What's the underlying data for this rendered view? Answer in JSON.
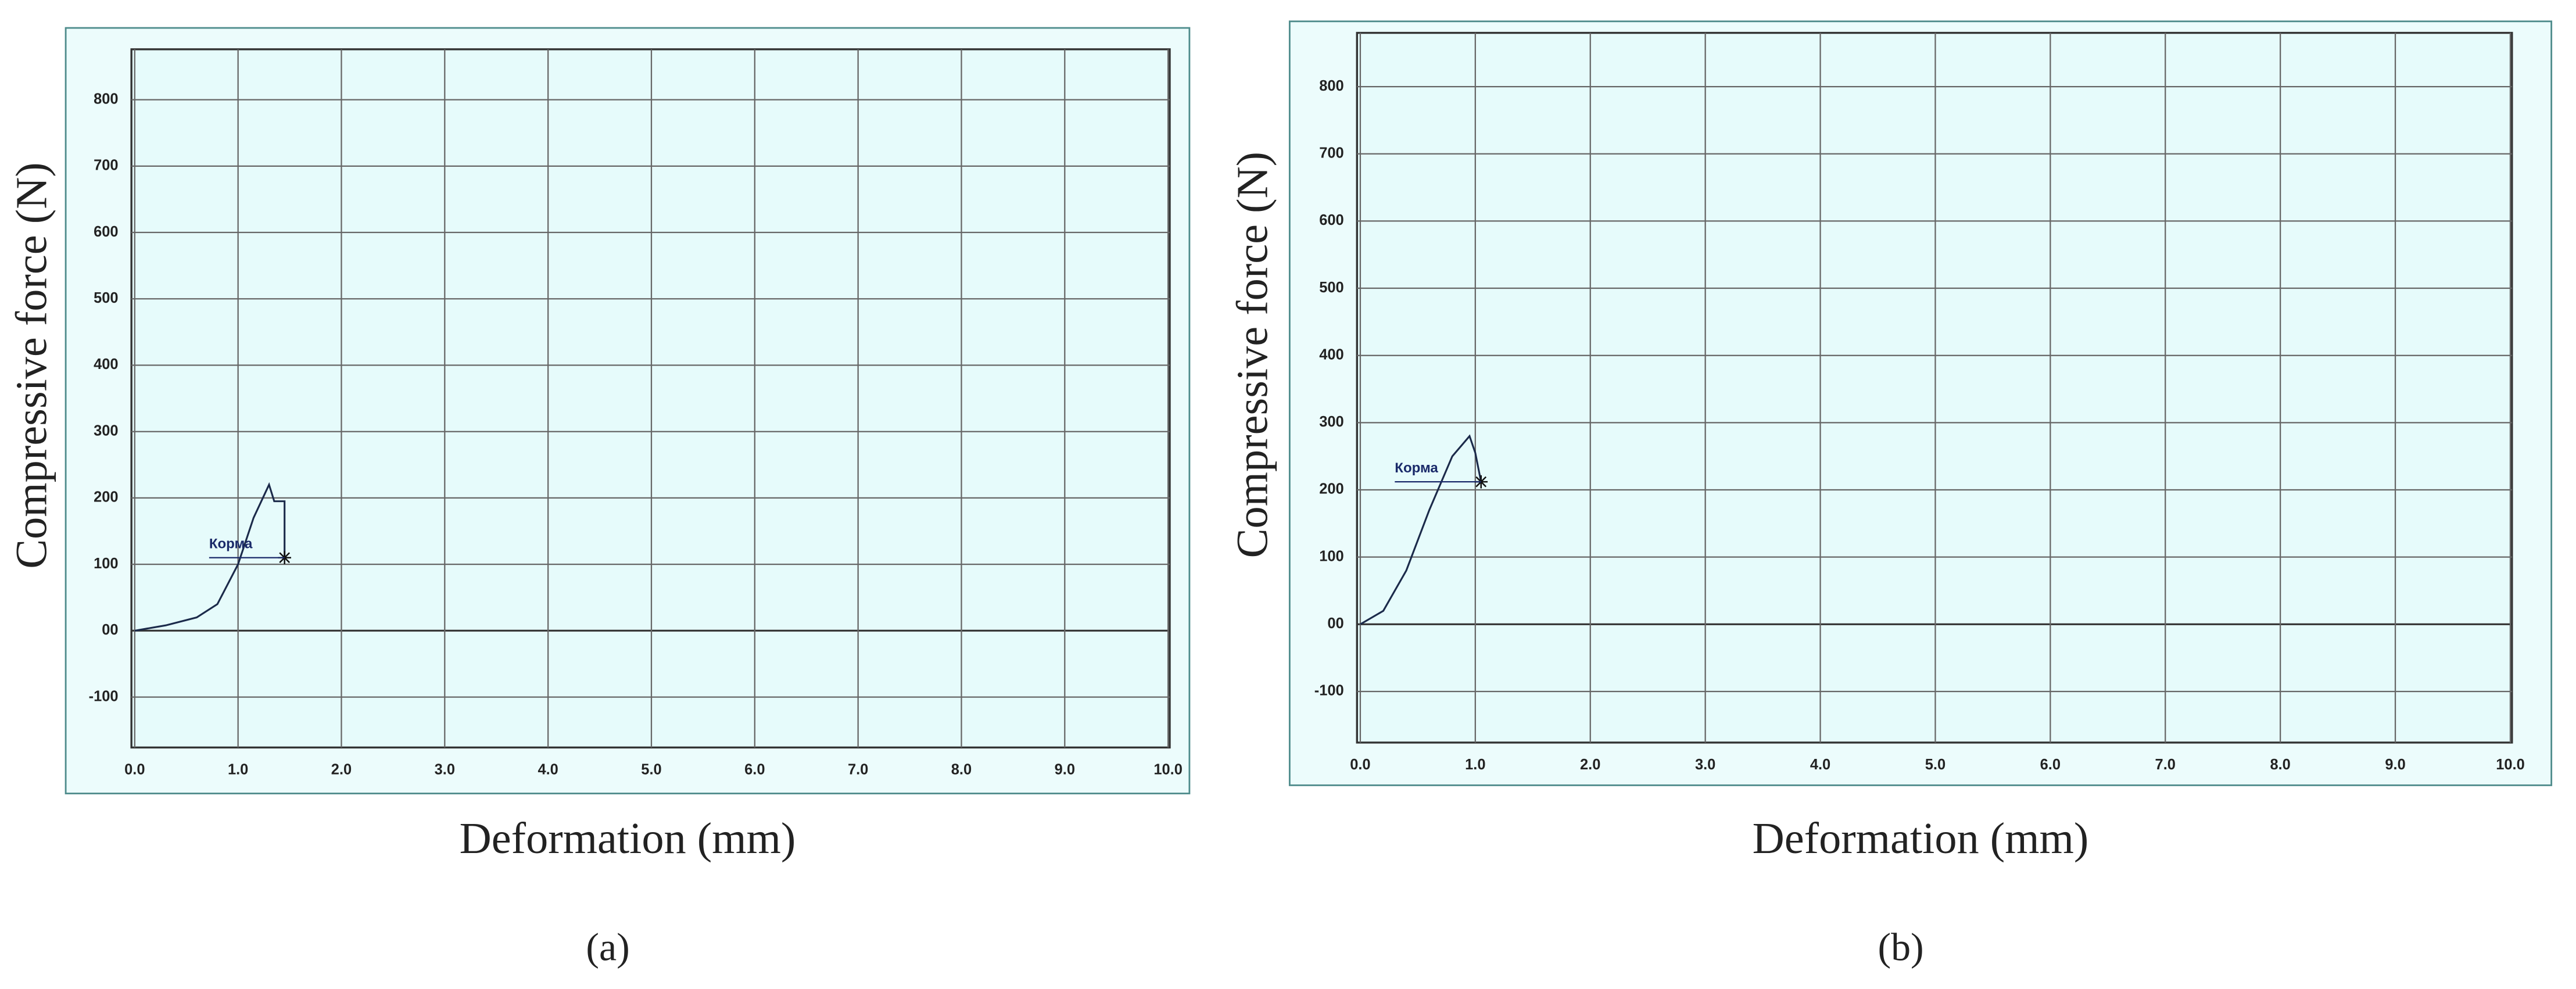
{
  "chart_data": [
    {
      "type": "line",
      "panel_label": "(a)",
      "x_label": "Deformation (mm)",
      "y_label": "Compressive force (N)",
      "x": [
        0,
        0.3,
        0.6,
        0.8,
        1.0,
        1.15,
        1.3,
        1.35,
        1.45,
        1.45
      ],
      "series": [
        {
          "color": "#1b2a4a",
          "values": [
            0,
            8,
            20,
            40,
            100,
            170,
            220,
            195,
            195,
            110
          ]
        }
      ],
      "annotation": "Корма",
      "xlim": [
        0,
        10
      ],
      "ylim": [
        -176,
        876
      ],
      "xticks": [
        {
          "value": 0,
          "label": "0.0"
        },
        {
          "value": 1,
          "label": "1.0"
        },
        {
          "value": 2,
          "label": "2.0"
        },
        {
          "value": 3,
          "label": "3.0"
        },
        {
          "value": 4,
          "label": "4.0"
        },
        {
          "value": 5,
          "label": "5.0"
        },
        {
          "value": 6,
          "label": "6.0"
        },
        {
          "value": 7,
          "label": "7.0"
        },
        {
          "value": 8,
          "label": "8.0"
        },
        {
          "value": 9,
          "label": "9.0"
        },
        {
          "value": 10,
          "label": "10.0"
        }
      ],
      "yticks": [
        -100,
        {
          "value": 0,
          "label": "00"
        },
        100,
        200,
        300,
        400,
        500,
        600,
        700,
        800
      ],
      "grid": true
    },
    {
      "type": "line",
      "panel_label": "(b)",
      "x_label": "Deformation (mm)",
      "y_label": "Compressive force (N)",
      "x": [
        0,
        0.2,
        0.4,
        0.6,
        0.8,
        0.95,
        1.0,
        1.05
      ],
      "series": [
        {
          "color": "#1b2a4a",
          "values": [
            0,
            20,
            80,
            170,
            250,
            280,
            255,
            212
          ]
        }
      ],
      "annotation": "Корма",
      "xlim": [
        0,
        10
      ],
      "ylim": [
        -176,
        880
      ],
      "xticks": [
        {
          "value": 0,
          "label": "0.0"
        },
        {
          "value": 1,
          "label": "1.0"
        },
        {
          "value": 2,
          "label": "2.0"
        },
        {
          "value": 3,
          "label": "3.0"
        },
        {
          "value": 4,
          "label": "4.0"
        },
        {
          "value": 5,
          "label": "5.0"
        },
        {
          "value": 6,
          "label": "6.0"
        },
        {
          "value": 7,
          "label": "7.0"
        },
        {
          "value": 8,
          "label": "8.0"
        },
        {
          "value": 9,
          "label": "9.0"
        },
        {
          "value": 10,
          "label": "10.0"
        }
      ],
      "yticks": [
        -100,
        {
          "value": 0,
          "label": "00"
        },
        100,
        200,
        300,
        400,
        500,
        600,
        700,
        800
      ],
      "grid": true
    }
  ]
}
